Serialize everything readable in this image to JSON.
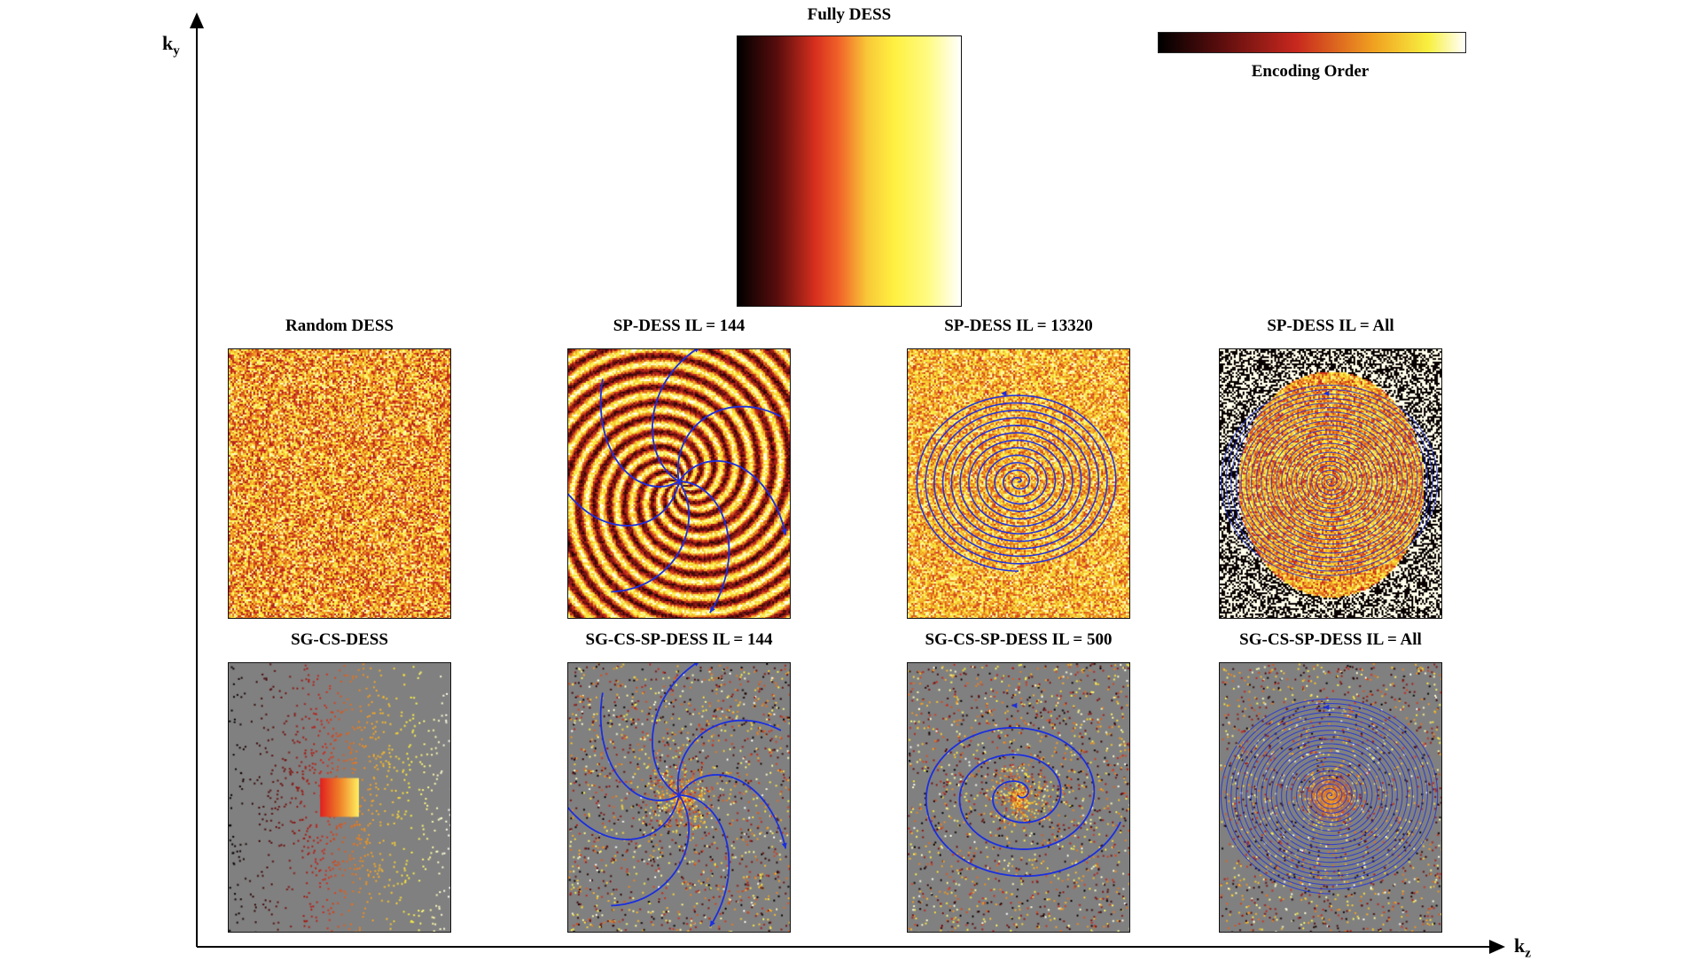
{
  "axes": {
    "ky_main": "k",
    "ky_sub": "y",
    "kz_main": "k",
    "kz_sub": "z"
  },
  "top": {
    "fully_title": "Fully DESS",
    "colorbar_label": "Encoding Order",
    "colormap": [
      "#000000",
      "#5a0d0d",
      "#c8281e",
      "#f0a020",
      "#f8f040",
      "#ffffff"
    ]
  },
  "row1": [
    {
      "title": "Random DESS",
      "pattern": "random"
    },
    {
      "title": "SP-DESS IL = 144",
      "pattern": "spiral-arms"
    },
    {
      "title": "SP-DESS IL = 13320",
      "pattern": "spiral-dense"
    },
    {
      "title": "SP-DESS IL = All",
      "pattern": "spiral-all"
    }
  ],
  "row2": [
    {
      "title": "SG-CS-DESS",
      "pattern": "cs-gradient"
    },
    {
      "title": "SG-CS-SP-DESS IL = 144",
      "pattern": "cs-spiral-arms"
    },
    {
      "title": "SG-CS-SP-DESS IL = 500",
      "pattern": "cs-spiral-single"
    },
    {
      "title": "SG-CS-SP-DESS IL = All",
      "pattern": "cs-spiral-all"
    }
  ],
  "colors": {
    "trajectory": "#1a2ee0",
    "background_gray": "#808080"
  }
}
